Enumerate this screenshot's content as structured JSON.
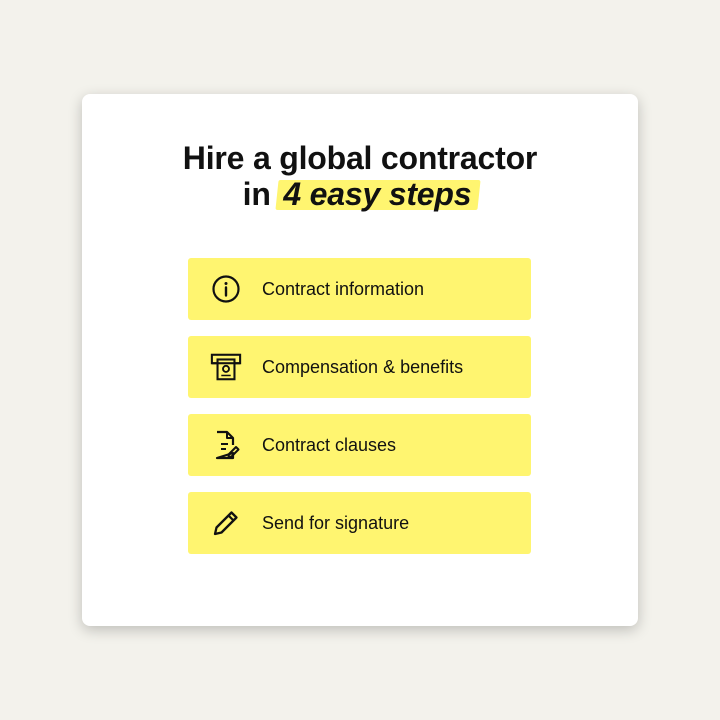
{
  "headline": {
    "line1": "Hire a global contractor",
    "line2_prefix": "in",
    "line2_highlight": "4 easy steps"
  },
  "steps": [
    {
      "label": "Contract information",
      "icon": "info-icon"
    },
    {
      "label": "Compensation & benefits",
      "icon": "money-icon"
    },
    {
      "label": "Contract clauses",
      "icon": "document-edit-icon"
    },
    {
      "label": "Send for signature",
      "icon": "pencil-icon"
    }
  ],
  "colors": {
    "background": "#f3f2ec",
    "card": "#ffffff",
    "accent": "#fff570",
    "text": "#111111"
  }
}
